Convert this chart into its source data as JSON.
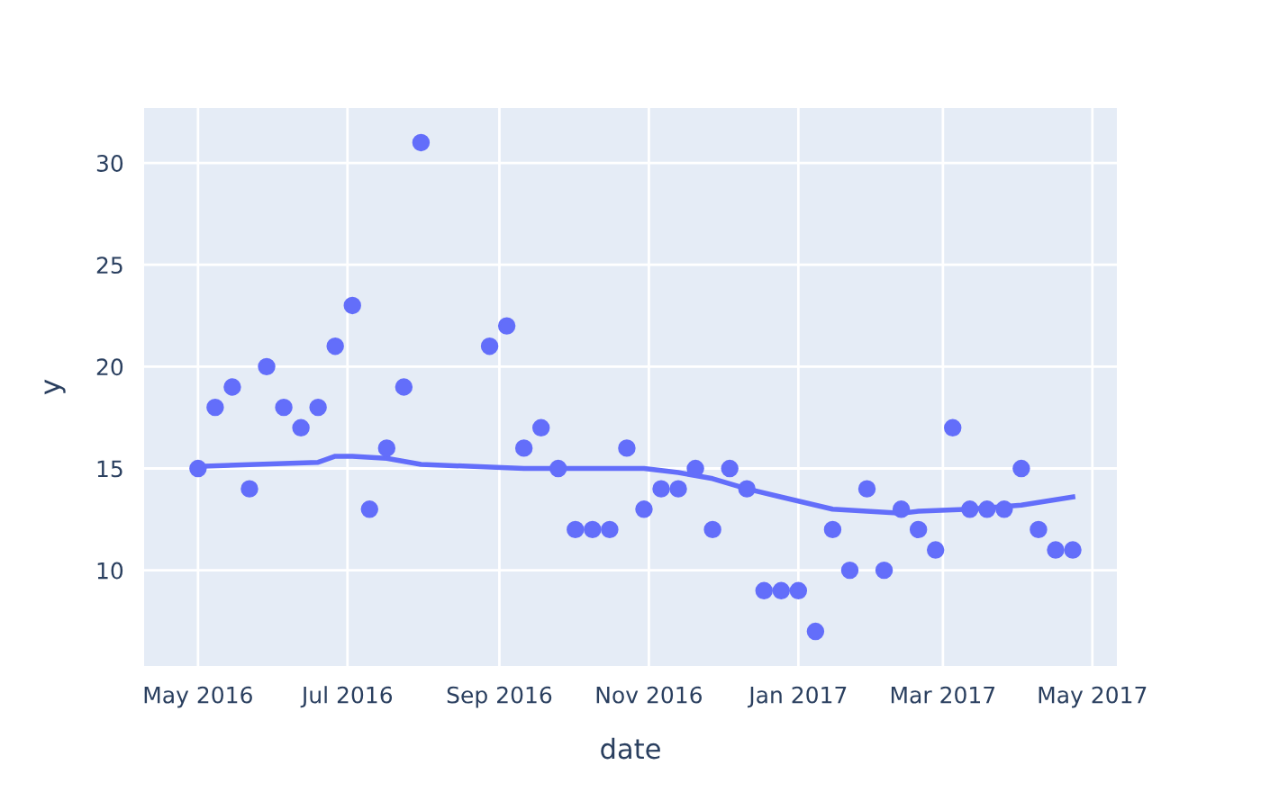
{
  "chart_data": {
    "type": "scatter",
    "xlabel": "date",
    "ylabel": "y",
    "grid": true,
    "xlim": [
      "2016-04-09",
      "2017-05-11"
    ],
    "ylim": [
      5.3,
      32.7
    ],
    "xticks": [
      {
        "value": "2016-05-01",
        "label": "May 2016"
      },
      {
        "value": "2016-07-01",
        "label": "Jul 2016"
      },
      {
        "value": "2016-09-01",
        "label": "Sep 2016"
      },
      {
        "value": "2016-11-01",
        "label": "Nov 2016"
      },
      {
        "value": "2017-01-01",
        "label": "Jan 2017"
      },
      {
        "value": "2017-03-01",
        "label": "Mar 2017"
      },
      {
        "value": "2017-05-01",
        "label": "May 2017"
      }
    ],
    "yticks": [
      10,
      15,
      20,
      25,
      30
    ],
    "series": [
      {
        "marker": "circle",
        "color": "#636efa",
        "x": [
          "2016-05-01",
          "2016-05-08",
          "2016-05-15",
          "2016-05-22",
          "2016-05-29",
          "2016-06-05",
          "2016-06-12",
          "2016-06-19",
          "2016-06-26",
          "2016-07-03",
          "2016-07-10",
          "2016-07-17",
          "2016-07-24",
          "2016-07-31",
          "2016-08-28",
          "2016-09-04",
          "2016-09-11",
          "2016-09-18",
          "2016-09-25",
          "2016-10-02",
          "2016-10-09",
          "2016-10-16",
          "2016-10-23",
          "2016-10-30",
          "2016-11-06",
          "2016-11-13",
          "2016-11-20",
          "2016-11-27",
          "2016-12-04",
          "2016-12-11",
          "2016-12-18",
          "2016-12-25",
          "2017-01-01",
          "2017-01-08",
          "2017-01-15",
          "2017-01-22",
          "2017-01-29",
          "2017-02-05",
          "2017-02-12",
          "2017-02-19",
          "2017-02-26",
          "2017-03-05",
          "2017-03-12",
          "2017-03-19",
          "2017-03-26",
          "2017-04-02",
          "2017-04-09",
          "2017-04-16",
          "2017-04-23"
        ],
        "values": [
          15,
          18,
          19,
          14,
          20,
          18,
          17,
          18,
          21,
          23,
          13,
          16,
          19,
          31,
          21,
          22,
          16,
          17,
          15,
          12,
          12,
          12,
          16,
          13,
          14,
          14,
          15,
          12,
          15,
          14,
          9,
          9,
          9,
          7,
          12,
          10,
          14,
          10,
          13,
          12,
          11,
          17,
          13,
          13,
          13,
          15,
          12,
          11,
          11
        ]
      },
      {
        "type": "line",
        "color": "#636efa",
        "x": [
          "2016-05-01",
          "2016-06-19",
          "2016-06-26",
          "2016-07-03",
          "2016-07-17",
          "2016-07-31",
          "2016-09-11",
          "2016-10-30",
          "2016-11-13",
          "2016-11-27",
          "2016-12-11",
          "2016-12-25",
          "2017-01-15",
          "2017-02-12",
          "2017-02-19",
          "2017-03-12",
          "2017-04-02",
          "2017-04-23"
        ],
        "values": [
          15.1,
          15.3,
          15.6,
          15.6,
          15.5,
          15.2,
          15.0,
          15.0,
          14.8,
          14.5,
          14.0,
          13.6,
          13.0,
          12.8,
          12.9,
          13.0,
          13.2,
          13.6
        ]
      }
    ]
  }
}
